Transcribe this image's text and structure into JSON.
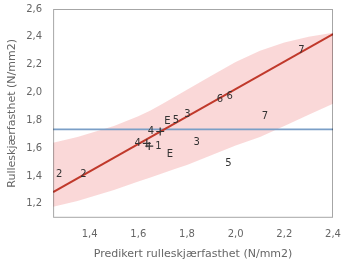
{
  "chart_data": {
    "type": "scatter",
    "xlabel": "Predikert rulleskjærfasthet (N/mm2)",
    "ylabel": "Rulleskjærfasthet (N/mm2)",
    "xlim": [
      1.25,
      2.4
    ],
    "ylim": [
      1.1,
      2.6
    ],
    "xticks": [
      {
        "value": 1.4,
        "label": "1,4"
      },
      {
        "value": 1.6,
        "label": "1,6"
      },
      {
        "value": 1.8,
        "label": "1,8"
      },
      {
        "value": 2.0,
        "label": "2,0"
      },
      {
        "value": 2.2,
        "label": "2,2"
      },
      {
        "value": 2.4,
        "label": "2,4"
      }
    ],
    "yticks": [
      {
        "value": 1.2,
        "label": "1,2"
      },
      {
        "value": 1.4,
        "label": "1,4"
      },
      {
        "value": 1.6,
        "label": "1,6"
      },
      {
        "value": 1.8,
        "label": "1,8"
      },
      {
        "value": 2.0,
        "label": "2,0"
      },
      {
        "value": 2.2,
        "label": "2,2"
      },
      {
        "value": 2.4,
        "label": "2,4"
      },
      {
        "value": 2.6,
        "label": "2,6"
      }
    ],
    "grid": false,
    "series": [
      {
        "type": "band",
        "color": "#f5b8b8",
        "x": [
          1.25,
          1.35,
          1.5,
          1.6,
          1.65,
          1.7,
          1.75,
          1.8,
          1.9,
          2.0,
          2.1,
          2.2,
          2.3,
          2.4
        ],
        "upper": [
          1.64,
          1.68,
          1.76,
          1.83,
          1.87,
          1.92,
          1.97,
          2.02,
          2.12,
          2.22,
          2.3,
          2.36,
          2.4,
          2.43
        ],
        "lower": [
          1.18,
          1.22,
          1.3,
          1.36,
          1.39,
          1.42,
          1.45,
          1.48,
          1.55,
          1.62,
          1.68,
          1.76,
          1.84,
          1.92
        ]
      },
      {
        "type": "line",
        "color": "#c0392b",
        "x": [
          1.25,
          2.4
        ],
        "values": [
          1.285,
          2.42
        ]
      },
      {
        "type": "hline",
        "color": "#7b9fc7",
        "y": 1.735
      },
      {
        "type": "scatter",
        "marker": "none",
        "color": "#333333",
        "x": [
          1.275,
          1.375,
          1.72,
          1.73,
          1.755,
          1.785,
          1.84,
          1.97,
          1.935,
          1.975,
          2.12,
          2.27
        ],
        "values": [
          1.415,
          1.415,
          1.795,
          1.555,
          1.8,
          1.845,
          1.645,
          1.49,
          1.95,
          1.97,
          1.83,
          2.3
        ],
        "labels": [
          "2",
          "2",
          "E",
          "E",
          "5",
          "3",
          "3",
          "5",
          "6",
          "6",
          "7",
          "7"
        ]
      },
      {
        "type": "scatter",
        "marker": "cross",
        "color": "#333333",
        "x": [
          1.635,
          1.645,
          1.69
        ],
        "values": [
          1.635,
          1.615,
          1.72
        ],
        "labels": [
          "4",
          "1",
          "4"
        ]
      }
    ]
  }
}
